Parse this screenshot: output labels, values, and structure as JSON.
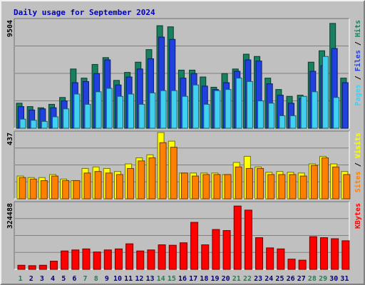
{
  "chart_data": {
    "type": "bar",
    "title": "Daily usage for September 2024",
    "categories": [
      "1",
      "2",
      "3",
      "4",
      "5",
      "6",
      "7",
      "8",
      "9",
      "10",
      "11",
      "12",
      "13",
      "14",
      "15",
      "16",
      "17",
      "18",
      "19",
      "20",
      "21",
      "22",
      "23",
      "24",
      "25",
      "26",
      "27",
      "28",
      "29",
      "30",
      "31"
    ],
    "weekend_days": [
      "1",
      "7",
      "8",
      "14",
      "15",
      "21",
      "22",
      "28",
      "29"
    ],
    "panels": [
      {
        "name": "traffic",
        "ylim": [
          0,
          9504
        ],
        "max_label": "9504",
        "axis_label": [
          "Pages",
          "Files",
          "Hits"
        ],
        "series": [
          {
            "name": "Hits",
            "color": "#188060",
            "values": [
              2200,
              1900,
              1800,
              2100,
              2700,
              5200,
              4400,
              5600,
              6200,
              4200,
              4900,
              5800,
              6900,
              9000,
              8900,
              5100,
              5100,
              4500,
              3600,
              4800,
              5200,
              6500,
              6300,
              4400,
              3400,
              2800,
              2900,
              5800,
              6800,
              9200,
              4400
            ]
          },
          {
            "name": "Files",
            "color": "#2040e0",
            "values": [
              1900,
              1600,
              1700,
              1800,
              2400,
              4000,
              4100,
              4800,
              6000,
              3800,
              4500,
              5200,
              6100,
              8000,
              7800,
              4400,
              4800,
              3700,
              3400,
              4000,
              5000,
              6000,
              5900,
              3900,
              2900,
              2200,
              2600,
              5000,
              5500,
              7000,
              4000
            ]
          },
          {
            "name": "Pages",
            "color": "#40d0f0",
            "values": [
              800,
              700,
              600,
              1000,
              1700,
              3000,
              2100,
              3200,
              3500,
              2800,
              3000,
              2100,
              3100,
              3300,
              3300,
              2800,
              3800,
              2100,
              3300,
              3400,
              4400,
              4100,
              2400,
              2200,
              1100,
              1100,
              2800,
              3200,
              6300,
              2700,
              0
            ]
          }
        ]
      },
      {
        "name": "visitors",
        "ylim": [
          0,
          437
        ],
        "max_label": "437",
        "axis_label": [
          "Sites",
          "Visits"
        ],
        "series": [
          {
            "name": "Visits",
            "color": "#ffff00",
            "values": [
              150,
              140,
              140,
              160,
              130,
              120,
              200,
              210,
              200,
              180,
              230,
              270,
              290,
              437,
              380,
              170,
              170,
              170,
              170,
              160,
              240,
              280,
              210,
              175,
              180,
              175,
              170,
              230,
              280,
              230,
              180
            ]
          },
          {
            "name": "Sites",
            "color": "#ff8000",
            "values": [
              140,
              130,
              120,
              150,
              120,
              120,
              170,
              180,
              170,
              160,
              200,
              250,
              270,
              370,
              340,
              170,
              150,
              160,
              160,
              160,
              210,
              200,
              200,
              160,
              160,
              160,
              150,
              220,
              270,
              210,
              160
            ]
          }
        ]
      },
      {
        "name": "kbytes",
        "ylim": [
          0,
          324488
        ],
        "max_label": "324488",
        "axis_label": [
          "KBytes"
        ],
        "series": [
          {
            "name": "KBytes",
            "color": "#ff0000",
            "values": [
              20000,
              18000,
              20000,
              40000,
              90000,
              95000,
              100000,
              85000,
              95000,
              100000,
              125000,
              90000,
              95000,
              120000,
              118000,
              130000,
              230000,
              120000,
              195000,
              190000,
              310000,
              290000,
              155000,
              105000,
              100000,
              50000,
              45000,
              160000,
              155000,
              150000,
              140000
            ]
          }
        ]
      }
    ]
  }
}
